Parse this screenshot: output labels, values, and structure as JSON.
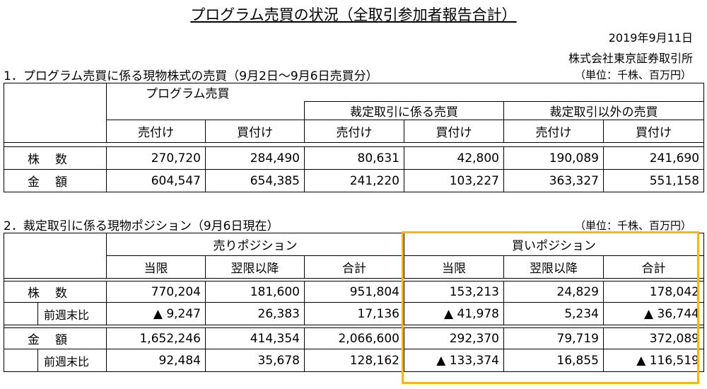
{
  "title": "プログラム売買の状況（全取引参加者報告合計）",
  "date": "2019年9月11日",
  "org": "株式会社東京証券取引所",
  "unit": "（単位：千株、百万円）",
  "section1": {
    "heading": "1．プログラム売買に係る現物株式の売買（9月2日～9月6日売買分）",
    "group_label": "プログラム売買",
    "arb_label": "裁定取引に係る売買",
    "nonarb_label": "裁定取引以外の売買",
    "cols": [
      "売付け",
      "買付け",
      "売付け",
      "買付け",
      "売付け",
      "買付け"
    ],
    "rows": [
      {
        "label": "株数",
        "values": [
          "270,720",
          "284,490",
          "80,631",
          "42,800",
          "190,089",
          "241,690"
        ]
      },
      {
        "label": "金額",
        "values": [
          "604,547",
          "654,385",
          "241,220",
          "103,227",
          "363,327",
          "551,158"
        ]
      }
    ]
  },
  "section2": {
    "heading": "2．裁定取引に係る現物ポジション（9月6日現在）",
    "sell_label": "売りポジション",
    "buy_label": "買いポジション",
    "cols": [
      "当限",
      "翌限以降",
      "合計",
      "当限",
      "翌限以降",
      "合計"
    ],
    "rows": [
      {
        "label": "株数",
        "values": [
          "770,204",
          "181,600",
          "951,804",
          "153,213",
          "24,829",
          "178,042"
        ]
      },
      {
        "label": "前週末比",
        "values": [
          "▲ 9,247",
          "26,383",
          "17,136",
          "▲ 41,978",
          "5,234",
          "▲ 36,744"
        ]
      },
      {
        "label": "金額",
        "values": [
          "1,652,246",
          "414,354",
          "2,066,600",
          "292,370",
          "79,719",
          "372,089"
        ]
      },
      {
        "label": "前週末比",
        "values": [
          "92,484",
          "35,678",
          "128,162",
          "▲ 133,374",
          "16,855",
          "▲ 116,519"
        ]
      }
    ]
  },
  "colors": {
    "highlight": "#f2b61f"
  }
}
